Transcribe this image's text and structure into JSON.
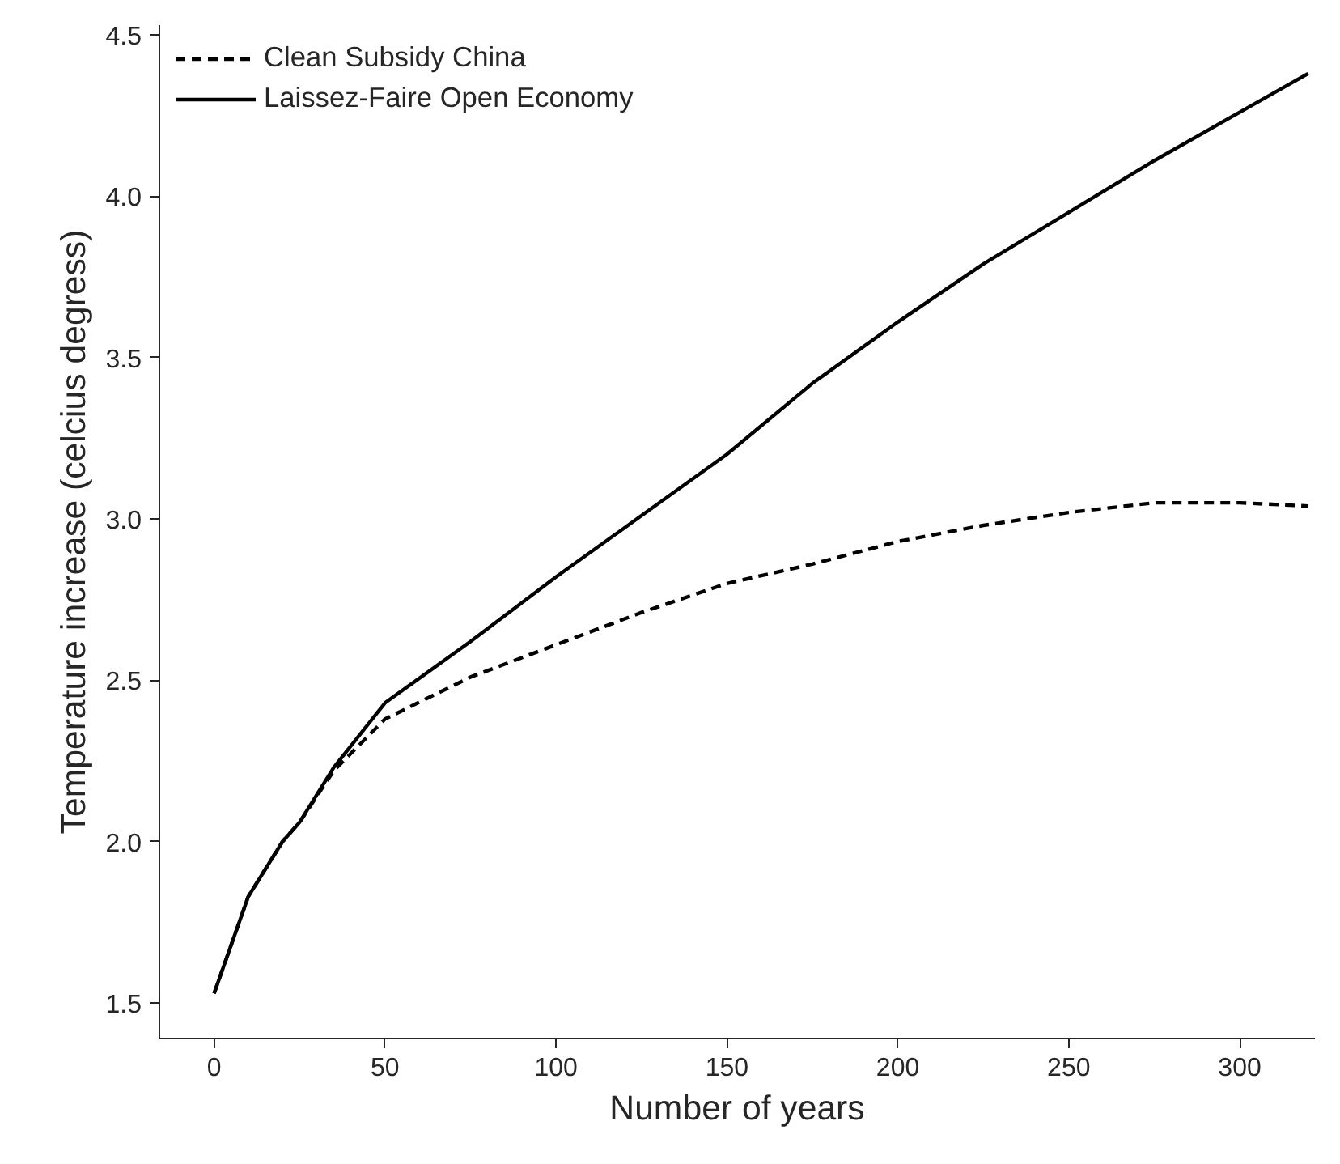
{
  "chart_data": {
    "type": "line",
    "xlabel": "Number of years",
    "ylabel": "Temperature increase (celcius degress)",
    "xlim": [
      -16,
      322
    ],
    "ylim": [
      1.39,
      4.53
    ],
    "xticks": [
      0,
      50,
      100,
      150,
      200,
      250,
      300
    ],
    "yticks": [
      1.5,
      {
        "value": 2,
        "label": "2.0"
      },
      2.5,
      {
        "value": 3,
        "label": "3.0"
      },
      3.5,
      {
        "value": 4,
        "label": "4.0"
      },
      4.5
    ],
    "grid": false,
    "legend": "top left",
    "x": [
      0,
      10,
      20,
      25,
      35,
      50,
      75,
      100,
      125,
      150,
      175,
      200,
      225,
      250,
      275,
      300,
      320
    ],
    "series": [
      {
        "name": "Clean Subsidy China",
        "color": "#000000",
        "line_style": "dashed",
        "values": [
          1.53,
          1.83,
          2.0,
          2.06,
          2.22,
          2.38,
          2.51,
          2.61,
          2.71,
          2.8,
          2.86,
          2.93,
          2.98,
          3.02,
          3.05,
          3.05,
          3.04
        ]
      },
      {
        "name": "Laissez-Faire Open Economy",
        "color": "#000000",
        "line_style": "solid",
        "values": [
          1.53,
          1.83,
          2.0,
          2.06,
          2.23,
          2.43,
          2.62,
          2.82,
          3.01,
          3.2,
          3.42,
          3.61,
          3.79,
          3.95,
          4.11,
          4.26,
          4.38
        ]
      }
    ]
  }
}
